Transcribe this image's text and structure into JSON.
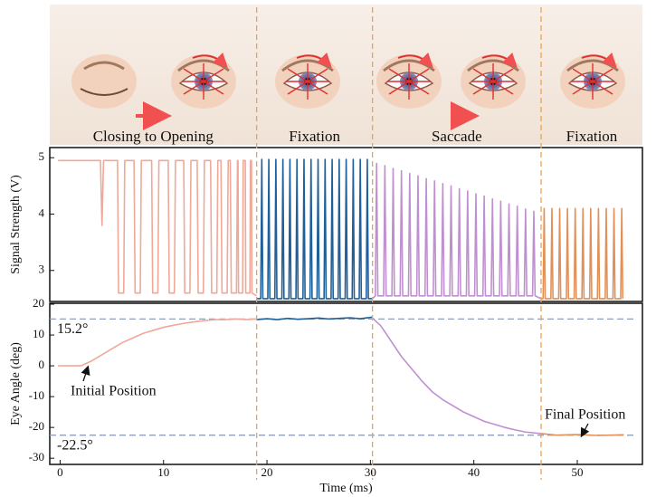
{
  "phases": {
    "labels": [
      "Closing to Opening",
      "Fixation",
      "Saccade",
      "Fixation"
    ],
    "boundaries": [
      19,
      30.2,
      46.5
    ],
    "boundary_color": "#f0a050"
  },
  "chart_data": [
    {
      "type": "line",
      "y_label": "Signal Strength (V)",
      "xlim": [
        -1,
        56.3
      ],
      "ylim": [
        2.45,
        5.18
      ],
      "yticks": [
        3,
        4,
        5
      ],
      "series": [
        {
          "color": "#f0a898",
          "x": [
            -0.2,
            3.9,
            4.05,
            4.2,
            5.55,
            5.65,
            6.15,
            6.25,
            7.15,
            7.25,
            7.75,
            7.85,
            8.85,
            8.95,
            9.45,
            9.55,
            10.45,
            10.55,
            11.05,
            11.15,
            11.95,
            12.05,
            12.55,
            12.65,
            13.25,
            13.35,
            13.85,
            13.95,
            14.55,
            14.65,
            15.15,
            15.25,
            15.55,
            15.65,
            16.15,
            16.25,
            16.45,
            16.55,
            17.05,
            17.15,
            17.2,
            17.25,
            17.65,
            17.7,
            17.9,
            17.95,
            18.35,
            18.4,
            18.5,
            18.55,
            19.0
          ],
          "values": [
            4.95,
            4.95,
            3.8,
            4.95,
            4.95,
            2.6,
            2.6,
            4.95,
            4.95,
            2.6,
            2.6,
            4.95,
            4.95,
            2.6,
            2.6,
            4.95,
            4.95,
            2.6,
            2.6,
            4.95,
            4.95,
            2.6,
            2.6,
            4.95,
            4.95,
            2.6,
            2.6,
            4.95,
            4.95,
            2.6,
            2.6,
            4.95,
            4.95,
            2.6,
            2.6,
            4.95,
            4.95,
            2.6,
            2.6,
            4.95,
            4.95,
            2.6,
            2.6,
            4.95,
            4.95,
            2.6,
            2.6,
            4.95,
            4.95,
            2.6,
            2.55
          ]
        },
        {
          "color": "#1f5f9a",
          "x": [
            19.0,
            19.4,
            19.5,
            19.6,
            20.08,
            20.18,
            20.28,
            20.76,
            20.86,
            20.96,
            21.44,
            21.54,
            21.64,
            22.12,
            22.22,
            22.32,
            22.8,
            22.9,
            23.0,
            23.48,
            23.58,
            23.68,
            24.16,
            24.26,
            24.36,
            24.84,
            24.94,
            25.04,
            25.52,
            25.62,
            25.72,
            26.2,
            26.3,
            26.4,
            26.88,
            26.98,
            27.08,
            27.56,
            27.66,
            27.76,
            28.24,
            28.34,
            28.44,
            28.92,
            29.02,
            29.12,
            29.6,
            29.7,
            29.8,
            30.2
          ],
          "values": [
            2.5,
            2.5,
            4.97,
            2.5,
            2.5,
            4.97,
            2.5,
            2.5,
            4.97,
            2.5,
            2.5,
            4.97,
            2.5,
            2.5,
            4.97,
            2.5,
            2.5,
            4.97,
            2.5,
            2.5,
            4.97,
            2.5,
            2.5,
            4.97,
            2.5,
            2.5,
            4.97,
            2.5,
            2.5,
            4.97,
            2.5,
            2.5,
            4.97,
            2.5,
            2.5,
            4.97,
            2.5,
            2.5,
            4.97,
            2.5,
            2.5,
            4.97,
            2.5,
            2.5,
            4.97,
            2.5,
            2.5,
            4.97,
            2.5,
            2.5
          ]
        },
        {
          "color": "#c08fd0",
          "x": [
            30.2,
            30.48,
            30.6,
            30.72,
            31.28,
            31.4,
            31.52,
            32.08,
            32.2,
            32.32,
            32.88,
            33.0,
            33.12,
            33.68,
            33.8,
            33.92,
            34.48,
            34.6,
            34.72,
            35.28,
            35.4,
            35.52,
            36.08,
            36.2,
            36.32,
            36.88,
            37.0,
            37.12,
            37.68,
            37.8,
            37.92,
            38.48,
            38.6,
            38.72,
            39.28,
            39.4,
            39.52,
            40.08,
            40.2,
            40.32,
            40.88,
            41.0,
            41.12,
            41.68,
            41.8,
            41.92,
            42.48,
            42.6,
            42.72,
            43.28,
            43.4,
            43.52,
            44.08,
            44.2,
            44.32,
            44.88,
            45.0,
            45.12,
            45.68,
            45.8,
            45.92,
            46.5
          ],
          "values": [
            2.5,
            2.55,
            4.9,
            2.55,
            2.55,
            4.86,
            2.55,
            2.55,
            4.81,
            2.55,
            2.55,
            4.77,
            2.55,
            2.55,
            4.72,
            2.55,
            2.55,
            4.68,
            2.55,
            2.55,
            4.63,
            2.55,
            2.55,
            4.59,
            2.55,
            2.55,
            4.54,
            2.55,
            2.55,
            4.5,
            2.55,
            2.55,
            4.45,
            2.55,
            2.55,
            4.41,
            2.55,
            2.55,
            4.36,
            2.55,
            2.55,
            4.32,
            2.55,
            2.55,
            4.27,
            2.55,
            2.55,
            4.23,
            2.55,
            2.55,
            4.18,
            2.55,
            2.55,
            4.14,
            2.55,
            2.55,
            4.09,
            2.55,
            2.55,
            4.05,
            2.55,
            2.5
          ]
        },
        {
          "color": "#e0915a",
          "x": [
            46.5,
            46.7,
            46.8,
            46.9,
            47.45,
            47.55,
            47.65,
            48.2,
            48.3,
            48.4,
            48.95,
            49.05,
            49.15,
            49.7,
            49.8,
            49.9,
            50.45,
            50.55,
            50.65,
            51.2,
            51.3,
            51.4,
            51.95,
            52.05,
            52.15,
            52.7,
            52.8,
            52.9,
            53.45,
            53.55,
            53.65,
            54.2,
            54.3,
            54.4
          ],
          "values": [
            2.5,
            2.5,
            4.1,
            2.5,
            2.5,
            4.1,
            2.5,
            2.5,
            4.1,
            2.5,
            2.5,
            4.1,
            2.5,
            2.5,
            4.1,
            2.5,
            2.5,
            4.1,
            2.5,
            2.5,
            4.1,
            2.5,
            2.5,
            4.1,
            2.5,
            2.5,
            4.1,
            2.5,
            2.5,
            4.1,
            2.5,
            2.5,
            4.1,
            2.5
          ]
        }
      ]
    },
    {
      "type": "line",
      "x_label": "Time (ms)",
      "y_label": "Eye Angle (deg)",
      "xlim": [
        -1,
        56.3
      ],
      "ylim": [
        -32,
        20.3
      ],
      "xticks": [
        0,
        10,
        20,
        30,
        40,
        50
      ],
      "yticks": [
        20,
        10,
        0,
        -10,
        -20,
        -30
      ],
      "reference_lines": [
        {
          "value": 15.2,
          "label": "15.2°"
        },
        {
          "value": -22.5,
          "label": "-22.5°"
        }
      ],
      "reference_color": "#8fa0bf",
      "annotations": [
        "Initial Position",
        "Final Position"
      ],
      "series": [
        {
          "color": "#f0a898",
          "x": [
            -0.2,
            2,
            3,
            4,
            5,
            6,
            7,
            8,
            9,
            10,
            11,
            12,
            13,
            14,
            15,
            16,
            17,
            18,
            19
          ],
          "values": [
            0,
            0,
            1.5,
            3.5,
            5.5,
            7.5,
            9,
            10.5,
            11.5,
            12.5,
            13.2,
            13.8,
            14.3,
            14.7,
            15,
            15,
            15.2,
            15,
            15.2
          ]
        },
        {
          "color": "#1f5f9a",
          "x": [
            19,
            20,
            21,
            22,
            23,
            24,
            25,
            26,
            27,
            28,
            29,
            30.2
          ],
          "values": [
            15,
            15.3,
            15,
            15.4,
            15.1,
            15.3,
            15.5,
            15.2,
            15.4,
            15.6,
            15.3,
            15.8
          ]
        },
        {
          "color": "#c08fd0",
          "x": [
            30.2,
            31,
            32,
            33,
            34,
            35,
            36,
            37,
            38,
            39,
            40,
            41,
            42,
            43,
            44,
            45,
            46.5
          ],
          "values": [
            15.5,
            13,
            8,
            3,
            -1,
            -5,
            -8.5,
            -11,
            -13,
            -15,
            -16.5,
            -18,
            -19,
            -20,
            -20.8,
            -21.5,
            -22
          ]
        },
        {
          "color": "#e0915a",
          "x": [
            46.5,
            48,
            50,
            52,
            54.5
          ],
          "values": [
            -22,
            -22.5,
            -22.3,
            -22.6,
            -22.4
          ]
        }
      ]
    }
  ]
}
